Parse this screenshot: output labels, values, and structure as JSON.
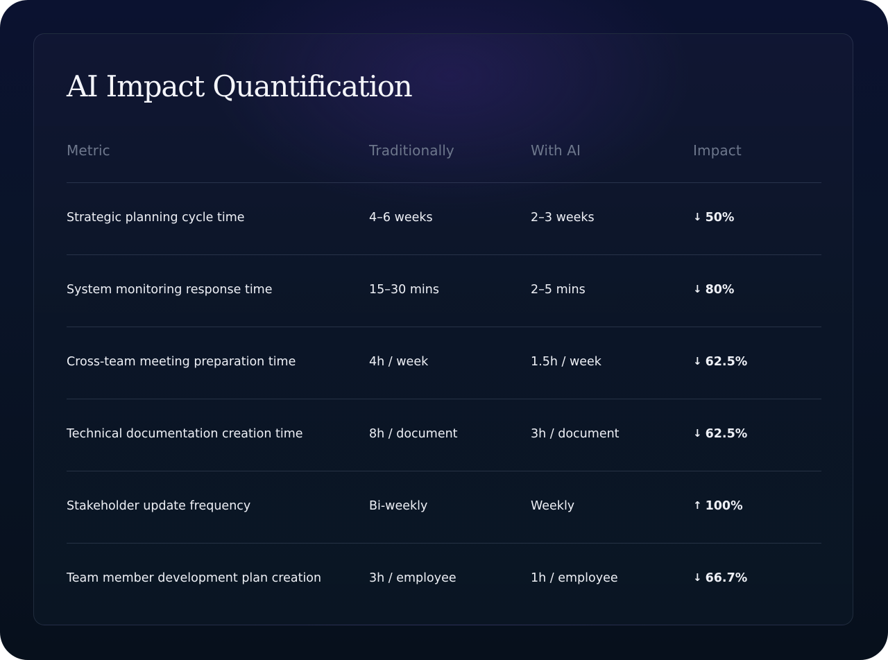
{
  "title": "AI Impact Quantification",
  "columns": {
    "metric": "Metric",
    "traditionally": "Traditionally",
    "with_ai": "With AI",
    "impact": "Impact"
  },
  "rows": [
    {
      "metric": "Strategic planning cycle time",
      "traditionally": "4–6 weeks",
      "with_ai": "2–3 weeks",
      "direction_icon": "arrow-down-icon",
      "arrow": "↓",
      "impact": "50%"
    },
    {
      "metric": "System monitoring response time",
      "traditionally": "15–30 mins",
      "with_ai": "2–5 mins",
      "direction_icon": "arrow-down-icon",
      "arrow": "↓",
      "impact": "80%"
    },
    {
      "metric": "Cross-team meeting preparation time",
      "traditionally": "4h / week",
      "with_ai": "1.5h / week",
      "direction_icon": "arrow-down-icon",
      "arrow": "↓",
      "impact": "62.5%"
    },
    {
      "metric": "Technical documentation creation time",
      "traditionally": "8h / document",
      "with_ai": "3h / document",
      "direction_icon": "arrow-down-icon",
      "arrow": "↓",
      "impact": "62.5%"
    },
    {
      "metric": "Stakeholder update frequency",
      "traditionally": "Bi-weekly",
      "with_ai": "Weekly",
      "direction_icon": "arrow-up-icon",
      "arrow": "↑",
      "impact": "100%"
    },
    {
      "metric": "Team member development plan creation",
      "traditionally": "3h / employee",
      "with_ai": "1h / employee",
      "direction_icon": "arrow-down-icon",
      "arrow": "↓",
      "impact": "66.7%"
    }
  ],
  "colors": {
    "background": "#07101c",
    "header_text": "#6d778c",
    "body_text": "#eef0f6",
    "divider": "#2a3348"
  }
}
